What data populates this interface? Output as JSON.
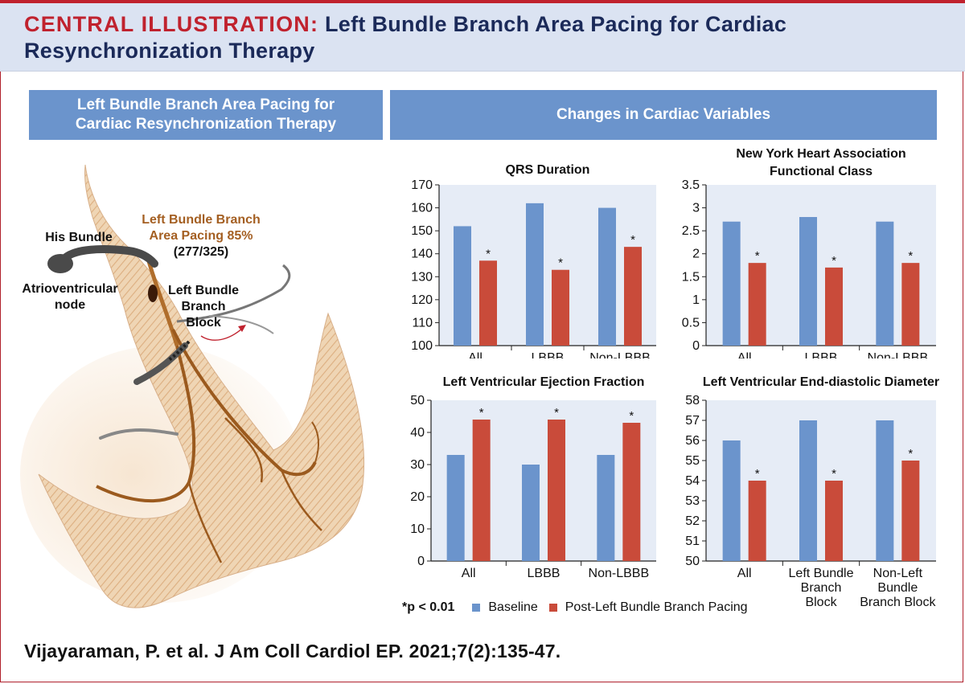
{
  "header": {
    "title_prefix": "CENTRAL ILLUSTRATION:",
    "title_rest": " Left Bundle Branch Area Pacing for Cardiac Resynchronization Therapy"
  },
  "left_panel": {
    "banner_line1": "Left Bundle Branch Area Pacing for",
    "banner_line2": "Cardiac Resynchronization Therapy",
    "labels": {
      "his_bundle": "His Bundle",
      "av_node_line1": "Atrioventricular",
      "av_node_line2": "node",
      "lbbap_line1": "Left Bundle Branch",
      "lbbap_line2": "Area Pacing 85%",
      "lbbap_line3": "(277/325)",
      "lbbb_line1": "Left Bundle",
      "lbbb_line2": "Branch",
      "lbbb_line3": "Block"
    }
  },
  "right_panel": {
    "banner": "Changes in Cardiac Variables"
  },
  "colors": {
    "baseline": "#6b94cc",
    "post": "#c94b3a",
    "title_red": "#c0222e",
    "title_navy": "#1b2a59"
  },
  "chart_data": [
    {
      "type": "bar",
      "title": [
        "QRS Duration"
      ],
      "categories": [
        [
          "All"
        ],
        [
          "LBBB"
        ],
        [
          "Non-LBBB"
        ]
      ],
      "series": [
        {
          "name": "Baseline",
          "values": [
            152,
            162,
            160
          ]
        },
        {
          "name": "Post-Left Bundle Branch Pacing",
          "values": [
            137,
            133,
            143
          ]
        }
      ],
      "significant": [
        true,
        true,
        true
      ],
      "ylim": [
        100,
        170
      ],
      "yticks": [
        "100",
        "110",
        "120",
        "130",
        "140",
        "150",
        "160",
        "170"
      ]
    },
    {
      "type": "bar",
      "title": [
        "New York Heart Association",
        "Functional Class"
      ],
      "categories": [
        [
          "All"
        ],
        [
          "LBBB"
        ],
        [
          "Non-LBBB"
        ]
      ],
      "series": [
        {
          "name": "Baseline",
          "values": [
            2.7,
            2.8,
            2.7
          ]
        },
        {
          "name": "Post-Left Bundle Branch Pacing",
          "values": [
            1.8,
            1.7,
            1.8
          ]
        }
      ],
      "significant": [
        true,
        true,
        true
      ],
      "ylim": [
        0,
        3.5
      ],
      "yticks": [
        "0",
        "0.5",
        "1",
        "1.5",
        "2",
        "2.5",
        "3",
        "3.5"
      ]
    },
    {
      "type": "bar",
      "title": [
        "Left Ventricular Ejection Fraction"
      ],
      "categories": [
        [
          "All"
        ],
        [
          "LBBB"
        ],
        [
          "Non-LBBB"
        ]
      ],
      "series": [
        {
          "name": "Baseline",
          "values": [
            33,
            30,
            33
          ]
        },
        {
          "name": "Post-Left Bundle Branch Pacing",
          "values": [
            44,
            44,
            43
          ]
        }
      ],
      "significant": [
        true,
        true,
        true
      ],
      "ylim": [
        0,
        50
      ],
      "yticks": [
        "0",
        "10",
        "20",
        "30",
        "40",
        "50"
      ]
    },
    {
      "type": "bar",
      "title": [
        "Left Ventricular End-diastolic Diameter"
      ],
      "categories": [
        [
          "All"
        ],
        [
          "Left Bundle",
          "Branch",
          "Block"
        ],
        [
          "Non-Left",
          "Bundle",
          "Branch Block"
        ]
      ],
      "series": [
        {
          "name": "Baseline",
          "values": [
            56,
            57,
            57
          ]
        },
        {
          "name": "Post-Left Bundle Branch Pacing",
          "values": [
            54,
            54,
            55
          ]
        }
      ],
      "significant": [
        true,
        true,
        true
      ],
      "ylim": [
        50,
        58
      ],
      "yticks": [
        "50",
        "51",
        "52",
        "53",
        "54",
        "55",
        "56",
        "57",
        "58"
      ]
    }
  ],
  "legend": {
    "pnote": "*p < 0.01",
    "star": "*",
    "baseline": "Baseline",
    "post": "Post-Left Bundle Branch Pacing"
  },
  "citation": "Vijayaraman, P. et al. J Am Coll Cardiol EP. 2021;7(2):135-47."
}
